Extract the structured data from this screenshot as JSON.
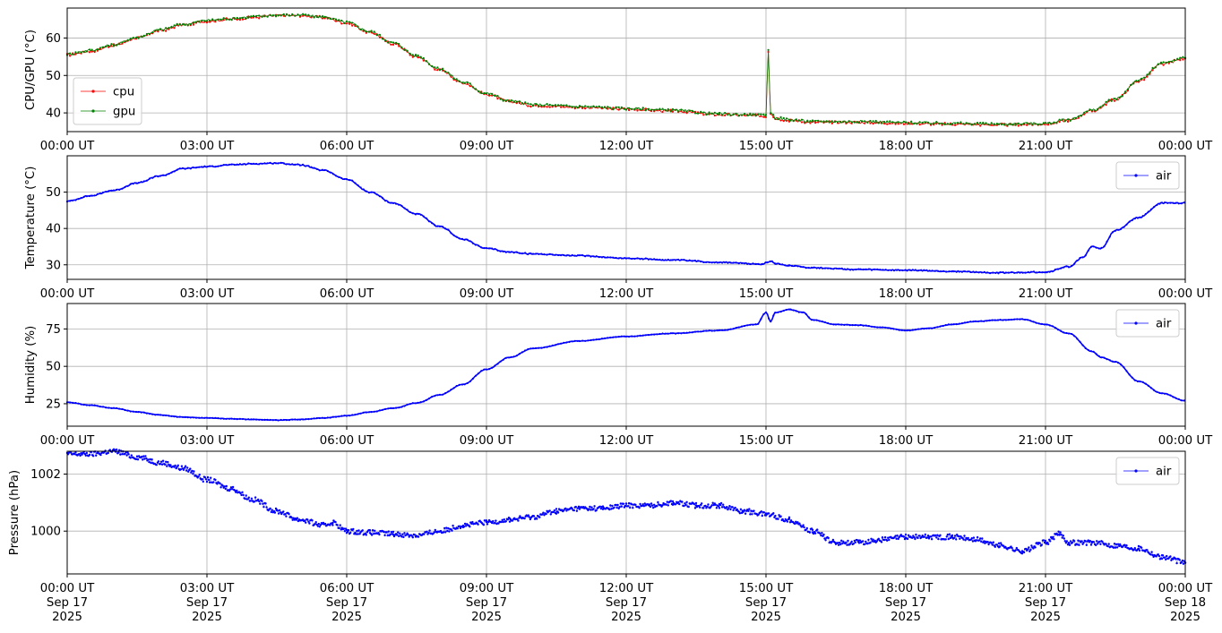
{
  "chart_data": [
    {
      "type": "line",
      "ylabel": "CPU/GPU (°C)",
      "ylim": [
        35,
        68
      ],
      "yticks": [
        40,
        50,
        60
      ],
      "xlim": [
        0,
        24
      ],
      "xticks": [
        0,
        3,
        6,
        9,
        12,
        15,
        18,
        21,
        24
      ],
      "xtick_labels": [
        "00:00 UT",
        "03:00 UT",
        "06:00 UT",
        "09:00 UT",
        "12:00 UT",
        "15:00 UT",
        "18:00 UT",
        "21:00 UT",
        "00:00 UT"
      ],
      "grid": true,
      "legend_position": "lower-left",
      "series": [
        {
          "name": "cpu",
          "color": "#ff0000",
          "x": [
            0,
            0.5,
            1,
            1.5,
            2,
            2.5,
            3,
            3.5,
            4,
            4.5,
            5,
            5.5,
            6,
            6.5,
            7,
            7.5,
            8,
            8.5,
            9,
            9.5,
            10,
            11,
            12,
            13,
            14,
            14.8,
            15,
            15.05,
            15.1,
            15.2,
            15.5,
            16,
            17,
            18,
            19,
            20,
            21,
            21.5,
            22,
            22.5,
            23,
            23.5,
            24
          ],
          "y": [
            55.5,
            56.5,
            58,
            60,
            62,
            63.5,
            64.5,
            65,
            65.5,
            66,
            66,
            65.5,
            64,
            61.5,
            58.5,
            55,
            51.5,
            48,
            45,
            43,
            42,
            41.5,
            41,
            40.5,
            39.5,
            39.3,
            39,
            56.5,
            40,
            38.5,
            38,
            37.5,
            37.5,
            37.2,
            37,
            36.8,
            37,
            38,
            40.5,
            43.5,
            48.5,
            53,
            54.5
          ]
        },
        {
          "name": "gpu",
          "color": "#008000",
          "x": [
            0,
            0.5,
            1,
            1.5,
            2,
            2.5,
            3,
            3.5,
            4,
            4.5,
            5,
            5.5,
            6,
            6.5,
            7,
            7.5,
            8,
            8.5,
            9,
            9.5,
            10,
            11,
            12,
            13,
            14,
            14.8,
            15,
            15.05,
            15.1,
            15.2,
            15.5,
            16,
            17,
            18,
            19,
            20,
            21,
            21.5,
            22,
            22.5,
            23,
            23.5,
            24
          ],
          "y": [
            55.7,
            56.7,
            58.2,
            60.2,
            62.2,
            63.7,
            64.7,
            65.2,
            65.7,
            66.1,
            66.1,
            65.6,
            64.2,
            61.7,
            58.7,
            55.2,
            51.7,
            48.2,
            45.2,
            43.2,
            42.2,
            41.7,
            41.2,
            40.7,
            39.7,
            39.5,
            39.2,
            56.8,
            40.2,
            38.7,
            38.2,
            37.7,
            37.7,
            37.4,
            37.2,
            37,
            37.2,
            38.2,
            40.7,
            43.7,
            48.7,
            53.2,
            54.7
          ]
        }
      ]
    },
    {
      "type": "line",
      "ylabel": "Temperature (°C)",
      "ylim": [
        26,
        60
      ],
      "yticks": [
        30,
        40,
        50
      ],
      "xlim": [
        0,
        24
      ],
      "xticks": [
        0,
        3,
        6,
        9,
        12,
        15,
        18,
        21,
        24
      ],
      "xtick_labels": [
        "00:00 UT",
        "03:00 UT",
        "06:00 UT",
        "09:00 UT",
        "12:00 UT",
        "15:00 UT",
        "18:00 UT",
        "21:00 UT",
        "00:00 UT"
      ],
      "grid": true,
      "legend_position": "upper-right",
      "series": [
        {
          "name": "air",
          "color": "#0000ff",
          "x": [
            0,
            0.5,
            1,
            1.5,
            2,
            2.5,
            3,
            3.5,
            4,
            4.5,
            5,
            5.5,
            6,
            6.5,
            7,
            7.5,
            8,
            8.5,
            9,
            9.5,
            10,
            11,
            12,
            13,
            14,
            14.9,
            15,
            15.1,
            15.2,
            15.5,
            16,
            17,
            18,
            19,
            20,
            21,
            21.5,
            21.8,
            22,
            22.2,
            22.5,
            23,
            23.5,
            24
          ],
          "y": [
            47.5,
            49,
            50.5,
            52.5,
            54.5,
            56.5,
            57,
            57.5,
            57.8,
            58,
            57.5,
            56,
            53.5,
            50,
            47,
            44,
            40.5,
            37,
            34.5,
            33.5,
            33,
            32.5,
            31.8,
            31.3,
            30.7,
            30.2,
            30.5,
            31,
            30.3,
            29.8,
            29.2,
            28.7,
            28.5,
            28.2,
            27.8,
            28,
            29.5,
            32,
            35,
            34.5,
            39.5,
            43,
            47,
            47
          ]
        }
      ]
    },
    {
      "type": "line",
      "ylabel": "Humidity (%)",
      "ylim": [
        10,
        92
      ],
      "yticks": [
        25,
        50,
        75
      ],
      "xlim": [
        0,
        24
      ],
      "xticks": [
        0,
        3,
        6,
        9,
        12,
        15,
        18,
        21,
        24
      ],
      "xtick_labels": [
        "00:00 UT",
        "03:00 UT",
        "06:00 UT",
        "09:00 UT",
        "12:00 UT",
        "15:00 UT",
        "18:00 UT",
        "21:00 UT",
        "00:00 UT"
      ],
      "grid": true,
      "legend_position": "upper-right",
      "series": [
        {
          "name": "air",
          "color": "#0000ff",
          "x": [
            0,
            0.5,
            1,
            1.5,
            2,
            2.5,
            3,
            3.5,
            4,
            4.5,
            5,
            5.5,
            6,
            6.5,
            7,
            7.5,
            8,
            8.5,
            9,
            9.5,
            10,
            11,
            12,
            13,
            14,
            14.8,
            15,
            15.1,
            15.2,
            15.5,
            15.8,
            16,
            16.5,
            17,
            17.5,
            18,
            18.5,
            19,
            19.5,
            20,
            20.5,
            21,
            21.5,
            22,
            22.2,
            22.5,
            23,
            23.5,
            24
          ],
          "y": [
            26,
            24,
            22,
            19.5,
            17.5,
            16,
            15.5,
            15,
            14.5,
            14,
            14.5,
            15.5,
            17,
            19.5,
            22,
            25.5,
            31,
            38,
            48,
            56,
            62,
            67,
            70,
            72,
            74,
            78,
            86,
            80,
            86,
            88,
            86,
            81,
            78,
            77.5,
            76,
            74,
            75.5,
            78,
            80,
            81,
            81.5,
            78,
            72,
            60,
            56,
            53,
            40,
            32,
            27
          ]
        }
      ]
    },
    {
      "type": "scatter",
      "ylabel": "Pressure (hPa)",
      "ylim": [
        998.5,
        1002.8
      ],
      "yticks": [
        1000,
        1002
      ],
      "xlim": [
        0,
        24
      ],
      "xticks": [
        0,
        3,
        6,
        9,
        12,
        15,
        18,
        21,
        24
      ],
      "xtick_labels": [
        [
          "00:00 UT",
          "Sep 17",
          "2025"
        ],
        [
          "03:00 UT",
          "Sep 17",
          "2025"
        ],
        [
          "06:00 UT",
          "Sep 17",
          "2025"
        ],
        [
          "09:00 UT",
          "Sep 17",
          "2025"
        ],
        [
          "12:00 UT",
          "Sep 17",
          "2025"
        ],
        [
          "15:00 UT",
          "Sep 17",
          "2025"
        ],
        [
          "18:00 UT",
          "Sep 17",
          "2025"
        ],
        [
          "21:00 UT",
          "Sep 17",
          "2025"
        ],
        [
          "00:00 UT",
          "Sep 18",
          "2025"
        ]
      ],
      "grid": true,
      "legend_position": "upper-right",
      "series": [
        {
          "name": "air",
          "color": "#0000ff",
          "x": [
            0,
            0.5,
            1,
            1.5,
            2,
            2.5,
            3,
            3.5,
            4,
            4.5,
            5,
            5.5,
            5.7,
            6,
            6.5,
            7,
            7.5,
            8,
            8.5,
            9,
            9.5,
            10,
            10.5,
            11,
            11.5,
            12,
            12.5,
            13,
            13.5,
            14,
            14.5,
            15,
            15.5,
            16,
            16.5,
            17,
            17.5,
            18,
            18.5,
            19,
            19.5,
            20,
            20.5,
            21,
            21.3,
            21.5,
            22,
            22.5,
            23,
            23.5,
            24
          ],
          "y": [
            1002.7,
            1002.7,
            1002.8,
            1002.6,
            1002.4,
            1002.2,
            1001.8,
            1001.5,
            1001.1,
            1000.7,
            1000.4,
            1000.2,
            1000.3,
            1000.0,
            999.95,
            999.9,
            999.85,
            1000.0,
            1000.2,
            1000.3,
            1000.4,
            1000.5,
            1000.7,
            1000.8,
            1000.8,
            1000.9,
            1000.9,
            1001.0,
            1000.9,
            1000.9,
            1000.7,
            1000.6,
            1000.4,
            1000.0,
            999.6,
            999.6,
            999.7,
            999.8,
            999.8,
            999.8,
            999.7,
            999.5,
            999.3,
            999.6,
            999.9,
            999.6,
            999.6,
            999.5,
            999.4,
            999.1,
            998.9
          ]
        }
      ]
    }
  ]
}
